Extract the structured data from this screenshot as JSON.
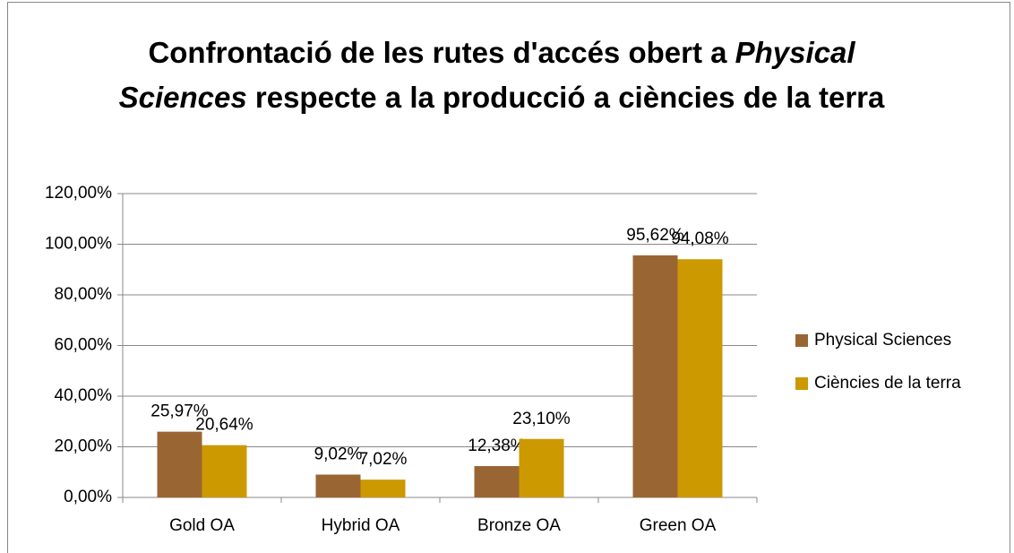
{
  "chart_data": {
    "type": "bar",
    "title_parts": [
      {
        "text": "Confrontació de les rutes d'accés obert a ",
        "italic": false
      },
      {
        "text": "Physical Sciences",
        "italic": true
      },
      {
        "text": " respecte a la producció a ciències de la terra",
        "italic": false
      }
    ],
    "categories": [
      "Gold OA",
      "Hybrid OA",
      "Bronze OA",
      "Green OA"
    ],
    "series": [
      {
        "name": "Physical Sciences",
        "color": "#996633",
        "values": [
          25.97,
          9.02,
          12.38,
          95.62
        ],
        "value_labels": [
          "25,97%",
          "9,02%",
          "12,38%",
          "95,62%"
        ]
      },
      {
        "name": "Ciències de la terra",
        "color": "#cc9900",
        "values": [
          20.64,
          7.02,
          23.1,
          94.08
        ],
        "value_labels": [
          "20,64%",
          "7,02%",
          "23,10%",
          "94,08%"
        ]
      }
    ],
    "ylim": [
      0,
      120
    ],
    "yticks": [
      {
        "value": 0,
        "label": "0,00%"
      },
      {
        "value": 20,
        "label": "20,00%"
      },
      {
        "value": 40,
        "label": "40,00%"
      },
      {
        "value": 60,
        "label": "60,00%"
      },
      {
        "value": 80,
        "label": "80,00%"
      },
      {
        "value": 100,
        "label": "100,00%"
      },
      {
        "value": 120,
        "label": "120,00%"
      }
    ],
    "grid": true,
    "legend": "right"
  }
}
